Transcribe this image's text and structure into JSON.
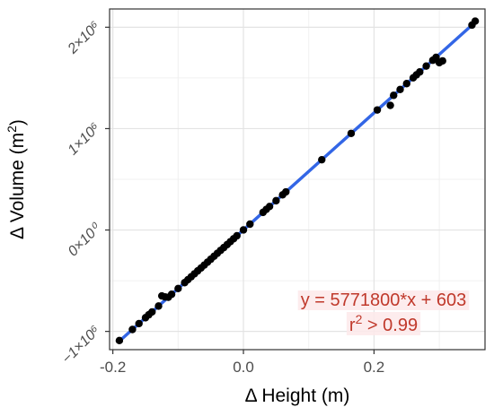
{
  "chart_data": {
    "type": "scatter",
    "xlabel": "Δ Height (m)",
    "ylabel": "Δ Volume (m²)",
    "xlim": [
      -0.205,
      0.37
    ],
    "ylim": [
      -1180000,
      2180000
    ],
    "grid": true,
    "x_ticks": [
      {
        "value": -0.2,
        "label": "-0.2"
      },
      {
        "value": 0.0,
        "label": "0.0"
      },
      {
        "value": 0.2,
        "label": "0.2"
      }
    ],
    "y_ticks": [
      {
        "value": -1000000,
        "label": "−1×10⁶"
      },
      {
        "value": 0,
        "label": "0×10⁰"
      },
      {
        "value": 1000000,
        "label": "1×10⁶"
      },
      {
        "value": 2000000,
        "label": "2×10⁶"
      }
    ],
    "points": [
      {
        "x": -0.19,
        "y": -1090000
      },
      {
        "x": -0.17,
        "y": -981000
      },
      {
        "x": -0.16,
        "y": -923000
      },
      {
        "x": -0.15,
        "y": -865000
      },
      {
        "x": -0.145,
        "y": -836000
      },
      {
        "x": -0.14,
        "y": -808000
      },
      {
        "x": -0.13,
        "y": -750000
      },
      {
        "x": -0.125,
        "y": -650000
      },
      {
        "x": -0.12,
        "y": -660000
      },
      {
        "x": -0.115,
        "y": -663000
      },
      {
        "x": -0.11,
        "y": -634000
      },
      {
        "x": -0.1,
        "y": -577000
      },
      {
        "x": -0.09,
        "y": -519000
      },
      {
        "x": -0.085,
        "y": -490000
      },
      {
        "x": -0.08,
        "y": -461000
      },
      {
        "x": -0.075,
        "y": -432000
      },
      {
        "x": -0.07,
        "y": -403000
      },
      {
        "x": -0.065,
        "y": -375000
      },
      {
        "x": -0.06,
        "y": -346000
      },
      {
        "x": -0.055,
        "y": -317000
      },
      {
        "x": -0.05,
        "y": -288000
      },
      {
        "x": -0.045,
        "y": -259000
      },
      {
        "x": -0.04,
        "y": -230000
      },
      {
        "x": -0.035,
        "y": -201000
      },
      {
        "x": -0.03,
        "y": -173000
      },
      {
        "x": -0.025,
        "y": -144000
      },
      {
        "x": -0.02,
        "y": -115000
      },
      {
        "x": -0.015,
        "y": -86000
      },
      {
        "x": -0.01,
        "y": -57000
      },
      {
        "x": 0.0,
        "y": 600
      },
      {
        "x": 0.01,
        "y": 58000
      },
      {
        "x": 0.03,
        "y": 174000
      },
      {
        "x": 0.035,
        "y": 203000
      },
      {
        "x": 0.04,
        "y": 232000
      },
      {
        "x": 0.05,
        "y": 289000
      },
      {
        "x": 0.06,
        "y": 347000
      },
      {
        "x": 0.065,
        "y": 376000
      },
      {
        "x": 0.12,
        "y": 693000
      },
      {
        "x": 0.165,
        "y": 953000
      },
      {
        "x": 0.205,
        "y": 1184000
      },
      {
        "x": 0.225,
        "y": 1229000
      },
      {
        "x": 0.23,
        "y": 1328000
      },
      {
        "x": 0.24,
        "y": 1386000
      },
      {
        "x": 0.25,
        "y": 1444000
      },
      {
        "x": 0.26,
        "y": 1501000
      },
      {
        "x": 0.265,
        "y": 1530000
      },
      {
        "x": 0.27,
        "y": 1559000
      },
      {
        "x": 0.28,
        "y": 1617000
      },
      {
        "x": 0.29,
        "y": 1674000
      },
      {
        "x": 0.295,
        "y": 1703000
      },
      {
        "x": 0.3,
        "y": 1650000
      },
      {
        "x": 0.305,
        "y": 1668000
      },
      {
        "x": 0.35,
        "y": 2021000
      },
      {
        "x": 0.355,
        "y": 2060000
      }
    ],
    "fit_line": {
      "slope": 5771800,
      "intercept": 603,
      "x_range": [
        -0.19,
        0.355
      ],
      "color": "#3366e6"
    },
    "point_color": "#000000",
    "annotation": {
      "line1": "y = 5771800*x + 603",
      "line2_prefix": "r",
      "line2_sup": "2",
      "line2_suffix": " > 0.99",
      "color": "#c0392b"
    }
  }
}
